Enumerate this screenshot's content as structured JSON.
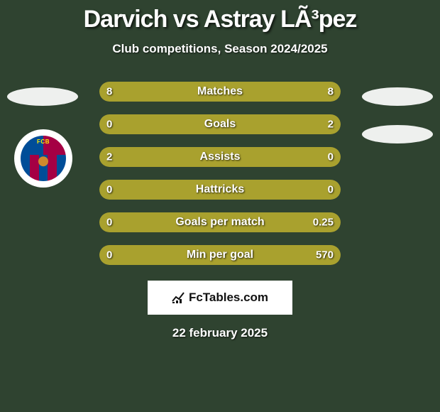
{
  "colors": {
    "background": "#2f4330",
    "text": "#ffffff",
    "bar_track": "#59613a",
    "bar_left_fill": "#a9a12e",
    "bar_right_fill": "#a9a12e",
    "blob": "#eef0ee",
    "crest_bg": "#ffffff",
    "crest_red": "#a50044",
    "crest_blue": "#004d98",
    "crest_yellow": "#ffed02",
    "crest_ball": "#d08a2d",
    "branding_bg": "#ffffff",
    "branding_text": "#111111"
  },
  "title": "Darvich vs Astray LÃ³pez",
  "subtitle": "Club competitions, Season 2024/2025",
  "rows": [
    {
      "label": "Matches",
      "left": "8",
      "right": "8",
      "left_pct": 50,
      "right_pct": 50
    },
    {
      "label": "Goals",
      "left": "0",
      "right": "2",
      "left_pct": 15,
      "right_pct": 85
    },
    {
      "label": "Assists",
      "left": "2",
      "right": "0",
      "left_pct": 85,
      "right_pct": 15
    },
    {
      "label": "Hattricks",
      "left": "0",
      "right": "0",
      "left_pct": 50,
      "right_pct": 50
    },
    {
      "label": "Goals per match",
      "left": "0",
      "right": "0.25",
      "left_pct": 15,
      "right_pct": 85
    },
    {
      "label": "Min per goal",
      "left": "0",
      "right": "570",
      "left_pct": 15,
      "right_pct": 85
    }
  ],
  "branding": "FcTables.com",
  "date": "22 february 2025",
  "crest_label": "FCB"
}
